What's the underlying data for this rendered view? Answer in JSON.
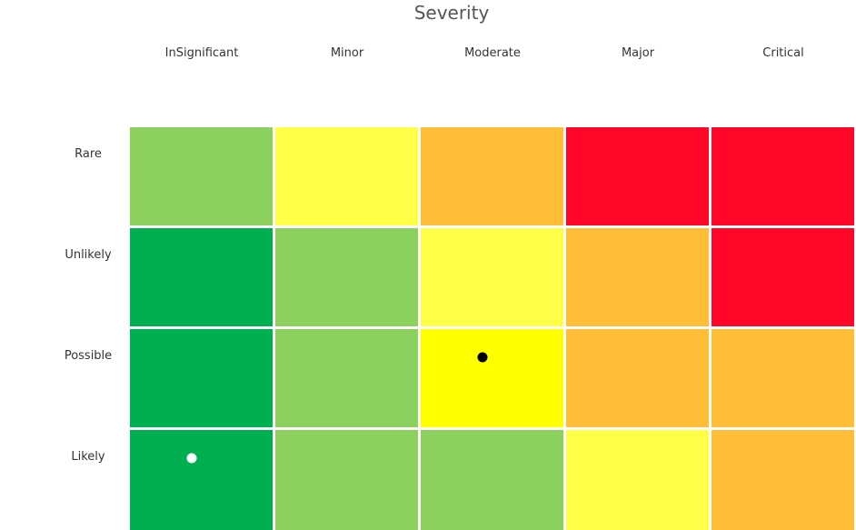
{
  "title": "Severity",
  "columns": [
    "InSignificant",
    "Minor",
    "Moderate",
    "Major",
    "Critical"
  ],
  "rows": [
    "Rare",
    "Unlikely",
    "Possible",
    "Likely"
  ],
  "colors": {
    "dark_green": "#00b050",
    "light_green": "#8cd05e",
    "light_yellow": "#ffff47",
    "yellow": "#ffff00",
    "orange": "#ffbd38",
    "red": "#ff0527"
  },
  "grid": [
    [
      "light_green",
      "light_yellow",
      "orange",
      "red",
      "red"
    ],
    [
      "dark_green",
      "light_green",
      "light_yellow",
      "orange",
      "red"
    ],
    [
      "dark_green",
      "light_green",
      "yellow",
      "orange",
      "orange"
    ],
    [
      "dark_green",
      "light_green",
      "light_green",
      "light_yellow",
      "orange"
    ]
  ],
  "markers": [
    {
      "row": 2,
      "col": 2,
      "color": "#000000"
    },
    {
      "row": 3,
      "col": 0,
      "color": "#ffffff"
    }
  ]
}
